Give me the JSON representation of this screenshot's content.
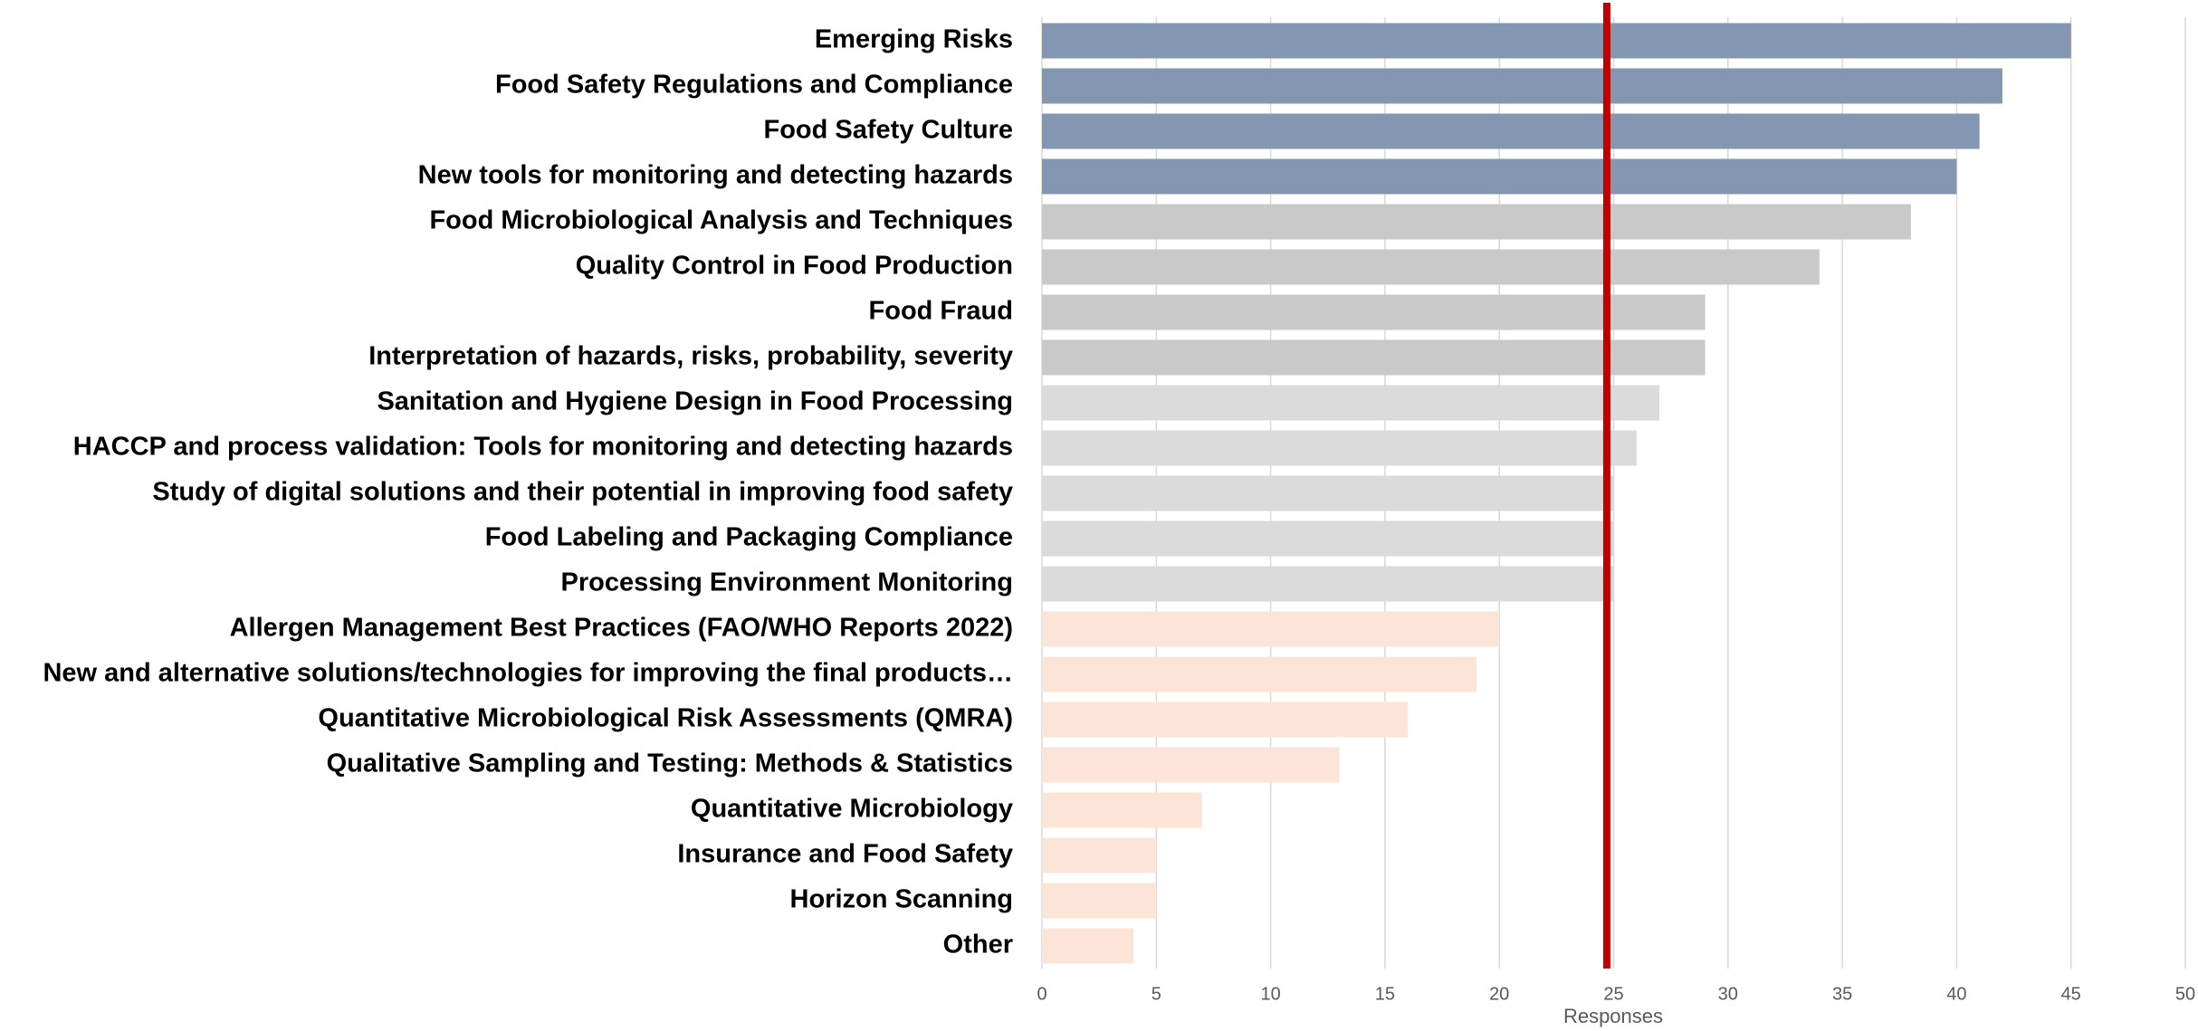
{
  "chart_data": {
    "type": "barh",
    "categories": [
      "Emerging Risks",
      "Food Safety Regulations and Compliance",
      "Food Safety Culture",
      "New tools for monitoring and detecting hazards",
      "Food Microbiological Analysis and Techniques",
      "Quality Control in Food Production",
      "Food Fraud",
      "Interpretation of hazards, risks, probability, severity",
      "Sanitation and Hygiene Design in Food Processing",
      "HACCP and process validation: Tools for monitoring and detecting hazards",
      "Study of digital solutions and their potential in improving food safety",
      "Food Labeling and Packaging Compliance",
      "Processing Environment Monitoring",
      "Allergen Management Best Practices (FAO/WHO Reports 2022)",
      "New and alternative solutions/technologies for improving the final products…",
      "Quantitative Microbiological Risk Assessments (QMRA)",
      "Qualitative Sampling and Testing: Methods & Statistics",
      "Quantitative Microbiology",
      "Insurance and Food Safety",
      "Horizon Scanning",
      "Other"
    ],
    "values": [
      45,
      42,
      41,
      40,
      38,
      34,
      29,
      29,
      27,
      26,
      25,
      25,
      25,
      20,
      19,
      16,
      13,
      7,
      5,
      5,
      4
    ],
    "colors": [
      "#8497b0",
      "#8497b0",
      "#8497b0",
      "#8497b0",
      "#c9c9c9",
      "#c9c9c9",
      "#c9c9c9",
      "#c9c9c9",
      "#dbdbdb",
      "#dbdbdb",
      "#dbdbdb",
      "#dbdbdb",
      "#dbdbdb",
      "#fce4d6",
      "#fce4d6",
      "#fce4d6",
      "#fce4d6",
      "#fce4d6",
      "#fce4d6",
      "#fce4d6",
      "#fce4d6"
    ],
    "xlabel": "Responses",
    "xlim": [
      0,
      50
    ],
    "xticks": [
      0,
      5,
      10,
      15,
      20,
      25,
      30,
      35,
      40,
      45,
      50
    ],
    "grid": true,
    "reference_line": 24.7,
    "reference_color": "#c00000"
  }
}
